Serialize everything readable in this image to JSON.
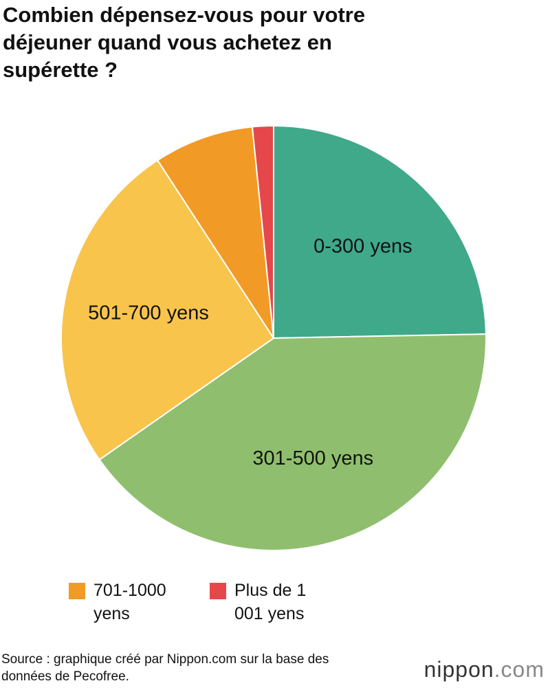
{
  "chart_data": {
    "type": "pie",
    "title": "Combien dépensez-vous pour votre déjeuner quand vous achetez en supérette ?",
    "categories": [
      "0-300 yens",
      "301-500 yens",
      "501-700 yens",
      "701-1000 yens",
      "Plus de 1 001 yens"
    ],
    "values": [
      24.7,
      40.6,
      25.5,
      7.6,
      1.6
    ],
    "colors": [
      "#3fa98a",
      "#8fbf6e",
      "#f8c44c",
      "#f29a26",
      "#e5474b"
    ],
    "source": "Source : graphique créé par Nippon.com sur la base des données de Pecofree.",
    "logo": {
      "main": "nippon",
      "suffix": ".com"
    }
  }
}
